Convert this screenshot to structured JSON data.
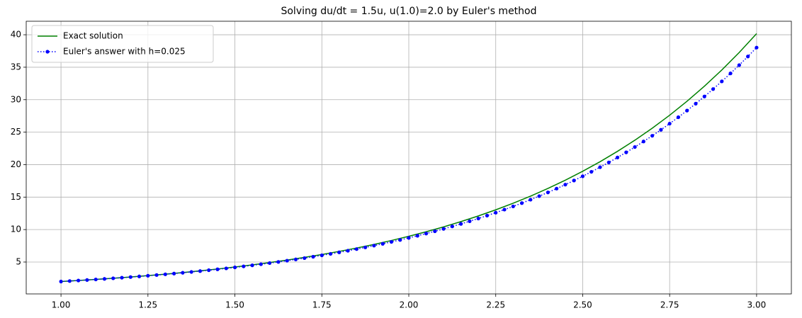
{
  "chart_data": {
    "type": "line",
    "title": "Solving du/dt = 1.5u, u(1.0)=2.0 by Euler's method",
    "xlim": [
      0.9,
      3.1
    ],
    "ylim": [
      0.09,
      42.08
    ],
    "xticks": [
      {
        "value": 1,
        "label": "1.00"
      },
      {
        "value": 1.25,
        "label": "1.25"
      },
      {
        "value": 1.5,
        "label": "1.50"
      },
      {
        "value": 1.75,
        "label": "1.75"
      },
      {
        "value": 2,
        "label": "2.00"
      },
      {
        "value": 2.25,
        "label": "2.25"
      },
      {
        "value": 2.5,
        "label": "2.50"
      },
      {
        "value": 2.75,
        "label": "2.75"
      },
      {
        "value": 3,
        "label": "3.00"
      }
    ],
    "yticks": [
      5,
      10,
      15,
      20,
      25,
      30,
      35,
      40
    ],
    "grid": true,
    "legend": "upper left",
    "series": [
      {
        "name": "Exact solution",
        "color": "#008000",
        "linestyle": "-",
        "marker": "none",
        "x": [
          1,
          1.05,
          1.1,
          1.15,
          1.2,
          1.25,
          1.3,
          1.35,
          1.4,
          1.45,
          1.5,
          1.55,
          1.6,
          1.65,
          1.7,
          1.75,
          1.8,
          1.85,
          1.9,
          1.95,
          2,
          2.05,
          2.1,
          2.15,
          2.2,
          2.25,
          2.3,
          2.35,
          2.4,
          2.45,
          2.5,
          2.55,
          2.6,
          2.65,
          2.7,
          2.75,
          2.8,
          2.85,
          2.9,
          2.95,
          3
        ],
        "values": [
          2.0,
          2.1558,
          2.3237,
          2.5046,
          2.6997,
          2.91,
          3.1366,
          3.3809,
          3.6442,
          3.9281,
          4.234,
          4.5638,
          4.9192,
          5.3023,
          5.7153,
          6.1604,
          6.6402,
          7.1574,
          7.7149,
          8.3157,
          8.9634,
          9.6615,
          10.414,
          11.225,
          12.0993,
          13.0416,
          14.0574,
          15.1522,
          16.3323,
          17.6044,
          18.9755,
          20.4534,
          22.0464,
          23.7634,
          25.6142,
          27.6092,
          29.7594,
          32.0772,
          34.5756,
          37.2686,
          40.1711
        ]
      },
      {
        "name": "Euler's answer with h=0.025",
        "color": "#0000ff",
        "linestyle": ":",
        "marker": "o",
        "x": [
          1,
          1.025,
          1.05,
          1.075,
          1.1,
          1.125,
          1.15,
          1.175,
          1.2,
          1.225,
          1.25,
          1.275,
          1.3,
          1.325,
          1.35,
          1.375,
          1.4,
          1.425,
          1.45,
          1.475,
          1.5,
          1.525,
          1.55,
          1.575,
          1.6,
          1.625,
          1.65,
          1.675,
          1.7,
          1.725,
          1.75,
          1.775,
          1.8,
          1.825,
          1.85,
          1.875,
          1.9,
          1.925,
          1.95,
          1.975,
          2,
          2.025,
          2.05,
          2.075,
          2.1,
          2.125,
          2.15,
          2.175,
          2.2,
          2.225,
          2.25,
          2.275,
          2.3,
          2.325,
          2.35,
          2.375,
          2.4,
          2.425,
          2.45,
          2.475,
          2.5,
          2.525,
          2.55,
          2.575,
          2.6,
          2.625,
          2.65,
          2.675,
          2.7,
          2.725,
          2.75,
          2.775,
          2.8,
          2.825,
          2.85,
          2.875,
          2.9,
          2.925,
          2.95,
          2.975,
          3
        ],
        "values": [
          2.0,
          2.075,
          2.1528,
          2.2335,
          2.3173,
          2.4042,
          2.4944,
          2.5879,
          2.6849,
          2.7856,
          2.8901,
          2.9985,
          3.1109,
          3.2276,
          3.3486,
          3.4742,
          3.6045,
          3.7397,
          3.8799,
          4.0254,
          4.1763,
          4.3329,
          4.4954,
          4.664,
          4.8389,
          5.0204,
          5.2087,
          5.404,
          5.6066,
          5.8169,
          6.035,
          6.2613,
          6.4961,
          6.7397,
          6.9925,
          7.2547,
          7.5267,
          7.809,
          8.1018,
          8.4056,
          8.7208,
          9.0479,
          9.3872,
          9.7392,
          10.1044,
          10.4833,
          10.8764,
          11.2843,
          11.7075,
          12.1465,
          12.602,
          13.0746,
          13.5649,
          14.0736,
          14.6013,
          15.1489,
          15.717,
          16.3064,
          16.9178,
          17.5523,
          18.2105,
          18.8934,
          19.6019,
          20.3369,
          21.0996,
          21.8908,
          22.7117,
          23.5634,
          24.447,
          25.3638,
          26.3149,
          27.3017,
          28.3256,
          29.3878,
          30.4898,
          31.6332,
          32.8194,
          34.0502,
          35.327,
          36.6518,
          38.0263
        ]
      }
    ]
  }
}
